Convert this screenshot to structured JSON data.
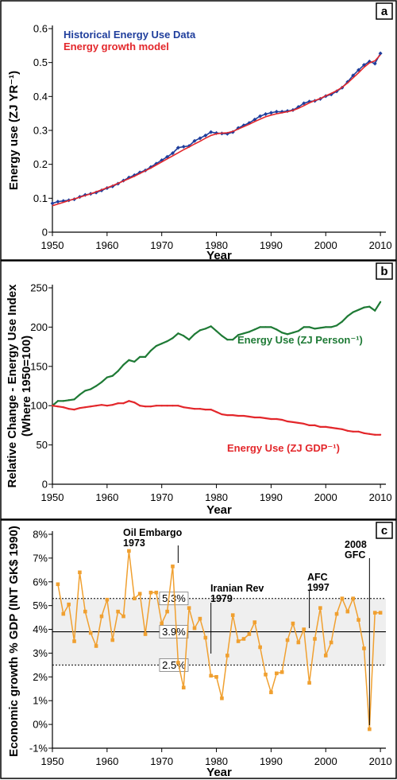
{
  "chart_data": [
    {
      "type": "line",
      "panel": "a",
      "xlabel": "Year",
      "ylabel": "Energy use (ZJ YR⁻¹)",
      "xlim": [
        1950,
        2011
      ],
      "ylim": [
        0,
        0.6
      ],
      "xticks": [
        1950,
        1960,
        1970,
        1980,
        1990,
        2000,
        2010
      ],
      "yticks": [
        0,
        0.1,
        0.2,
        0.3,
        0.4,
        0.5,
        0.6
      ],
      "ytick_labels": [
        "0",
        "0.1",
        "0.2",
        "0.3",
        "0.4",
        "0.5",
        "0.6"
      ],
      "legend": [
        "Historical Energy Use Data",
        "Energy growth model"
      ],
      "legend_position": "top-left",
      "series": [
        {
          "name": "Historical Energy Use Data",
          "color": "#1f3e9c",
          "marker": "diamond",
          "x": [
            1950,
            1951,
            1952,
            1953,
            1954,
            1955,
            1956,
            1957,
            1958,
            1959,
            1960,
            1961,
            1962,
            1963,
            1964,
            1965,
            1966,
            1967,
            1968,
            1969,
            1970,
            1971,
            1972,
            1973,
            1974,
            1975,
            1976,
            1977,
            1978,
            1979,
            1980,
            1981,
            1982,
            1983,
            1984,
            1985,
            1986,
            1987,
            1988,
            1989,
            1990,
            1991,
            1992,
            1993,
            1994,
            1995,
            1996,
            1997,
            1998,
            1999,
            2000,
            2001,
            2002,
            2003,
            2004,
            2005,
            2006,
            2007,
            2008,
            2009,
            2010
          ],
          "y": [
            0.085,
            0.09,
            0.092,
            0.094,
            0.097,
            0.104,
            0.11,
            0.113,
            0.117,
            0.123,
            0.13,
            0.135,
            0.143,
            0.152,
            0.161,
            0.168,
            0.176,
            0.182,
            0.192,
            0.202,
            0.212,
            0.222,
            0.233,
            0.249,
            0.252,
            0.254,
            0.269,
            0.277,
            0.285,
            0.295,
            0.292,
            0.291,
            0.29,
            0.295,
            0.307,
            0.315,
            0.322,
            0.332,
            0.342,
            0.348,
            0.352,
            0.355,
            0.355,
            0.357,
            0.36,
            0.369,
            0.38,
            0.385,
            0.387,
            0.393,
            0.401,
            0.406,
            0.415,
            0.426,
            0.443,
            0.462,
            0.478,
            0.493,
            0.503,
            0.497,
            0.527
          ]
        },
        {
          "name": "Energy growth model",
          "color": "#e3272b",
          "marker": "none",
          "x": [
            1950,
            1951,
            1952,
            1953,
            1954,
            1955,
            1956,
            1957,
            1958,
            1959,
            1960,
            1961,
            1962,
            1963,
            1964,
            1965,
            1966,
            1967,
            1968,
            1969,
            1970,
            1971,
            1972,
            1973,
            1974,
            1975,
            1976,
            1977,
            1978,
            1979,
            1980,
            1981,
            1982,
            1983,
            1984,
            1985,
            1986,
            1987,
            1988,
            1989,
            1990,
            1991,
            1992,
            1993,
            1994,
            1995,
            1996,
            1997,
            1998,
            1999,
            2000,
            2001,
            2002,
            2003,
            2004,
            2005,
            2006,
            2007,
            2008,
            2009,
            2010
          ],
          "y": [
            0.078,
            0.083,
            0.088,
            0.093,
            0.098,
            0.103,
            0.108,
            0.113,
            0.119,
            0.125,
            0.131,
            0.137,
            0.144,
            0.151,
            0.158,
            0.165,
            0.173,
            0.181,
            0.189,
            0.198,
            0.207,
            0.216,
            0.225,
            0.234,
            0.243,
            0.251,
            0.26,
            0.268,
            0.277,
            0.285,
            0.29,
            0.292,
            0.293,
            0.297,
            0.304,
            0.311,
            0.318,
            0.326,
            0.333,
            0.34,
            0.345,
            0.349,
            0.352,
            0.355,
            0.359,
            0.365,
            0.373,
            0.381,
            0.388,
            0.394,
            0.402,
            0.409,
            0.417,
            0.427,
            0.44,
            0.455,
            0.47,
            0.486,
            0.499,
            0.505,
            0.523
          ]
        }
      ]
    },
    {
      "type": "line",
      "panel": "b",
      "xlabel": "Year",
      "ylabel": "Relative Change - Energy Use Index",
      "ylabel2": "(Where 1950=100)",
      "xlim": [
        1950,
        2011
      ],
      "ylim": [
        0,
        250
      ],
      "xticks": [
        1950,
        1960,
        1970,
        1980,
        1990,
        2000,
        2010
      ],
      "yticks": [
        0,
        50,
        100,
        150,
        200,
        250
      ],
      "series": [
        {
          "name": "Energy Use (ZJ Person⁻¹)",
          "color": "#1e7a35",
          "x": [
            1950,
            1951,
            1952,
            1953,
            1954,
            1955,
            1956,
            1957,
            1958,
            1959,
            1960,
            1961,
            1962,
            1963,
            1964,
            1965,
            1966,
            1967,
            1968,
            1969,
            1970,
            1971,
            1972,
            1973,
            1974,
            1975,
            1976,
            1977,
            1978,
            1979,
            1980,
            1981,
            1982,
            1983,
            1984,
            1985,
            1986,
            1987,
            1988,
            1989,
            1990,
            1991,
            1992,
            1993,
            1994,
            1995,
            1996,
            1997,
            1998,
            1999,
            2000,
            2001,
            2002,
            2003,
            2004,
            2005,
            2006,
            2007,
            2008,
            2009,
            2010
          ],
          "y": [
            100,
            106,
            106,
            107,
            108,
            114,
            119,
            121,
            125,
            130,
            136,
            138,
            144,
            152,
            158,
            156,
            162,
            162,
            170,
            176,
            179,
            182,
            186,
            192,
            189,
            184,
            191,
            196,
            198,
            201,
            195,
            189,
            184,
            184,
            190,
            192,
            194,
            197,
            200,
            200,
            200,
            197,
            193,
            191,
            193,
            195,
            200,
            200,
            198,
            199,
            200,
            200,
            202,
            207,
            214,
            219,
            222,
            225,
            226,
            221,
            232
          ]
        },
        {
          "name": "Energy Use (ZJ GDP⁻¹)",
          "color": "#e3272b",
          "x": [
            1950,
            1951,
            1952,
            1953,
            1954,
            1955,
            1956,
            1957,
            1958,
            1959,
            1960,
            1961,
            1962,
            1963,
            1964,
            1965,
            1966,
            1967,
            1968,
            1969,
            1970,
            1971,
            1972,
            1973,
            1974,
            1975,
            1976,
            1977,
            1978,
            1979,
            1980,
            1981,
            1982,
            1983,
            1984,
            1985,
            1986,
            1987,
            1988,
            1989,
            1990,
            1991,
            1992,
            1993,
            1994,
            1995,
            1996,
            1997,
            1998,
            1999,
            2000,
            2001,
            2002,
            2003,
            2004,
            2005,
            2006,
            2007,
            2008,
            2009,
            2010
          ],
          "y": [
            100,
            99,
            98,
            96,
            95,
            97,
            98,
            99,
            100,
            101,
            100,
            101,
            103,
            103,
            106,
            104,
            100,
            99,
            99,
            100,
            100,
            100,
            100,
            100,
            98,
            97,
            96,
            96,
            95,
            95,
            92,
            89,
            88,
            88,
            87,
            87,
            86,
            85,
            85,
            84,
            83,
            83,
            82,
            80,
            79,
            78,
            77,
            75,
            75,
            73,
            73,
            72,
            71,
            70,
            68,
            67,
            67,
            65,
            64,
            63,
            63
          ]
        }
      ]
    },
    {
      "type": "line",
      "panel": "c",
      "xlabel": "Year",
      "ylabel": "Economic growth % GDP (INT GK$ 1990)",
      "xlim": [
        1950,
        2011
      ],
      "ylim": [
        -1,
        8
      ],
      "xticks": [
        1950,
        1960,
        1970,
        1980,
        1990,
        2000,
        2010
      ],
      "yticks": [
        -1,
        0,
        1,
        2,
        3,
        4,
        5,
        6,
        7,
        8
      ],
      "ytick_labels": [
        "-1%",
        "0%",
        "1%",
        "2%",
        "3%",
        "4%",
        "5%",
        "6%",
        "7%",
        "8%"
      ],
      "band": {
        "lower": 2.5,
        "mean": 3.9,
        "upper": 5.3
      },
      "band_labels": [
        "5.3%",
        "3.9%",
        "2.5%"
      ],
      "annotations": [
        {
          "text": [
            "Oil Embargo",
            "1973"
          ],
          "x": 1973
        },
        {
          "text": [
            "Iranian Rev",
            "1979"
          ],
          "x": 1979
        },
        {
          "text": [
            "AFC",
            "1997"
          ],
          "x": 1997
        },
        {
          "text": [
            "2008",
            "GFC"
          ],
          "x": 2008
        }
      ],
      "series": [
        {
          "name": "",
          "color": "#f0a030",
          "marker": "square",
          "x": [
            1951,
            1952,
            1953,
            1954,
            1955,
            1956,
            1957,
            1958,
            1959,
            1960,
            1961,
            1962,
            1963,
            1964,
            1965,
            1966,
            1967,
            1968,
            1969,
            1970,
            1971,
            1972,
            1973,
            1974,
            1975,
            1976,
            1977,
            1978,
            1979,
            1980,
            1981,
            1982,
            1983,
            1984,
            1985,
            1986,
            1987,
            1988,
            1989,
            1990,
            1991,
            1992,
            1993,
            1994,
            1995,
            1996,
            1997,
            1998,
            1999,
            2000,
            2001,
            2002,
            2003,
            2004,
            2005,
            2006,
            2007,
            2008,
            2009,
            2010
          ],
          "y": [
            5.9,
            4.65,
            5.05,
            3.5,
            6.4,
            4.75,
            3.85,
            3.3,
            4.55,
            5.25,
            3.55,
            4.75,
            4.55,
            7.3,
            5.3,
            5.5,
            3.8,
            5.55,
            5.55,
            4.25,
            4.75,
            6.65,
            2.6,
            1.55,
            4.9,
            4.05,
            4.45,
            3.65,
            2.05,
            2.0,
            1.1,
            2.9,
            4.6,
            3.5,
            3.6,
            3.8,
            4.3,
            3.25,
            2.1,
            1.35,
            2.15,
            2.2,
            3.55,
            4.25,
            3.45,
            4.0,
            1.75,
            3.6,
            4.9,
            2.9,
            3.45,
            4.65,
            5.3,
            4.75,
            5.3,
            4.4,
            3.2,
            -0.2,
            4.7,
            4.7
          ]
        }
      ]
    }
  ],
  "panel_letters": [
    "a",
    "b",
    "c"
  ],
  "colors": {
    "blue": "#1f3e9c",
    "red": "#e3272b",
    "green": "#1e7a35",
    "orange": "#f0a030",
    "band": "#efefef"
  }
}
